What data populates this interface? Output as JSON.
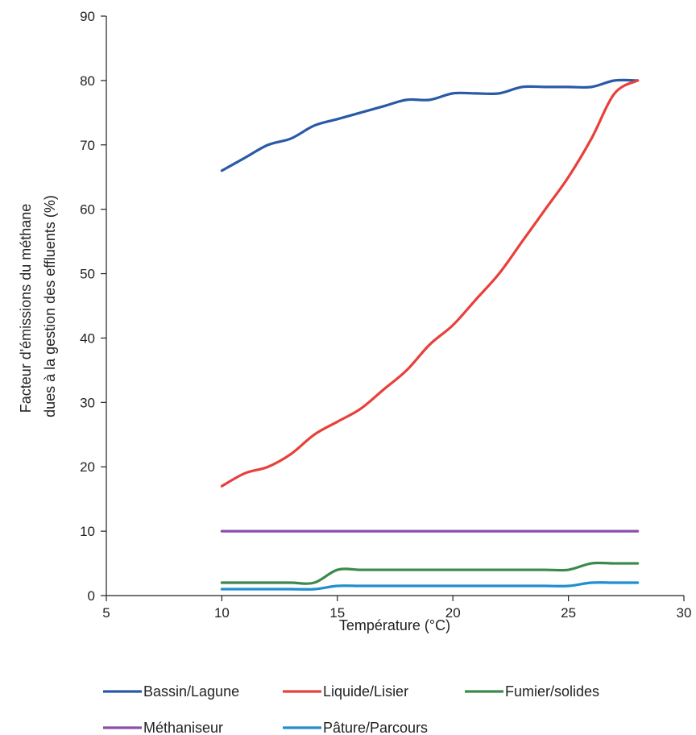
{
  "chart_data": {
    "type": "line",
    "title": "",
    "xlabel": "Température (°C)",
    "ylabel_lines": [
      "Facteur d'émissions du méthane",
      "dues à la gestion des effluents (%)"
    ],
    "xlim": [
      5,
      30
    ],
    "ylim": [
      0,
      90
    ],
    "x_ticks": [
      5,
      10,
      15,
      20,
      25,
      30
    ],
    "y_ticks": [
      0,
      10,
      20,
      30,
      40,
      50,
      60,
      70,
      80,
      90
    ],
    "grid": false,
    "legend_position": "bottom",
    "series": [
      {
        "name": "Bassin/Lagune",
        "color": "#2a5aa7",
        "x": [
          10,
          11,
          12,
          13,
          14,
          15,
          16,
          17,
          18,
          19,
          20,
          21,
          22,
          23,
          24,
          25,
          26,
          27,
          28
        ],
        "y": [
          66,
          68,
          70,
          71,
          73,
          74,
          75,
          76,
          77,
          77,
          78,
          78,
          78,
          79,
          79,
          79,
          79,
          80,
          80
        ]
      },
      {
        "name": "Liquide/Lisier",
        "color": "#e8403a",
        "x": [
          10,
          11,
          12,
          13,
          14,
          15,
          16,
          17,
          18,
          19,
          20,
          21,
          22,
          23,
          24,
          25,
          26,
          27,
          28
        ],
        "y": [
          17,
          19,
          20,
          22,
          25,
          27,
          29,
          32,
          35,
          39,
          42,
          46,
          50,
          55,
          60,
          65,
          71,
          78,
          80
        ]
      },
      {
        "name": "Fumier/solides",
        "color": "#3a8a4a",
        "x": [
          10,
          11,
          12,
          13,
          14,
          15,
          16,
          17,
          18,
          19,
          20,
          21,
          22,
          23,
          24,
          25,
          26,
          27,
          28
        ],
        "y": [
          2,
          2,
          2,
          2,
          2,
          4,
          4,
          4,
          4,
          4,
          4,
          4,
          4,
          4,
          4,
          4,
          5,
          5,
          5
        ]
      },
      {
        "name": "Méthaniseur",
        "color": "#8a4fa8",
        "x": [
          10,
          11,
          12,
          13,
          14,
          15,
          16,
          17,
          18,
          19,
          20,
          21,
          22,
          23,
          24,
          25,
          26,
          27,
          28
        ],
        "y": [
          10,
          10,
          10,
          10,
          10,
          10,
          10,
          10,
          10,
          10,
          10,
          10,
          10,
          10,
          10,
          10,
          10,
          10,
          10
        ]
      },
      {
        "name": "Pâture/Parcours",
        "color": "#1f8fd0",
        "x": [
          10,
          11,
          12,
          13,
          14,
          15,
          16,
          17,
          18,
          19,
          20,
          21,
          22,
          23,
          24,
          25,
          26,
          27,
          28
        ],
        "y": [
          1,
          1,
          1,
          1,
          1,
          1.5,
          1.5,
          1.5,
          1.5,
          1.5,
          1.5,
          1.5,
          1.5,
          1.5,
          1.5,
          1.5,
          2,
          2,
          2
        ]
      }
    ]
  }
}
